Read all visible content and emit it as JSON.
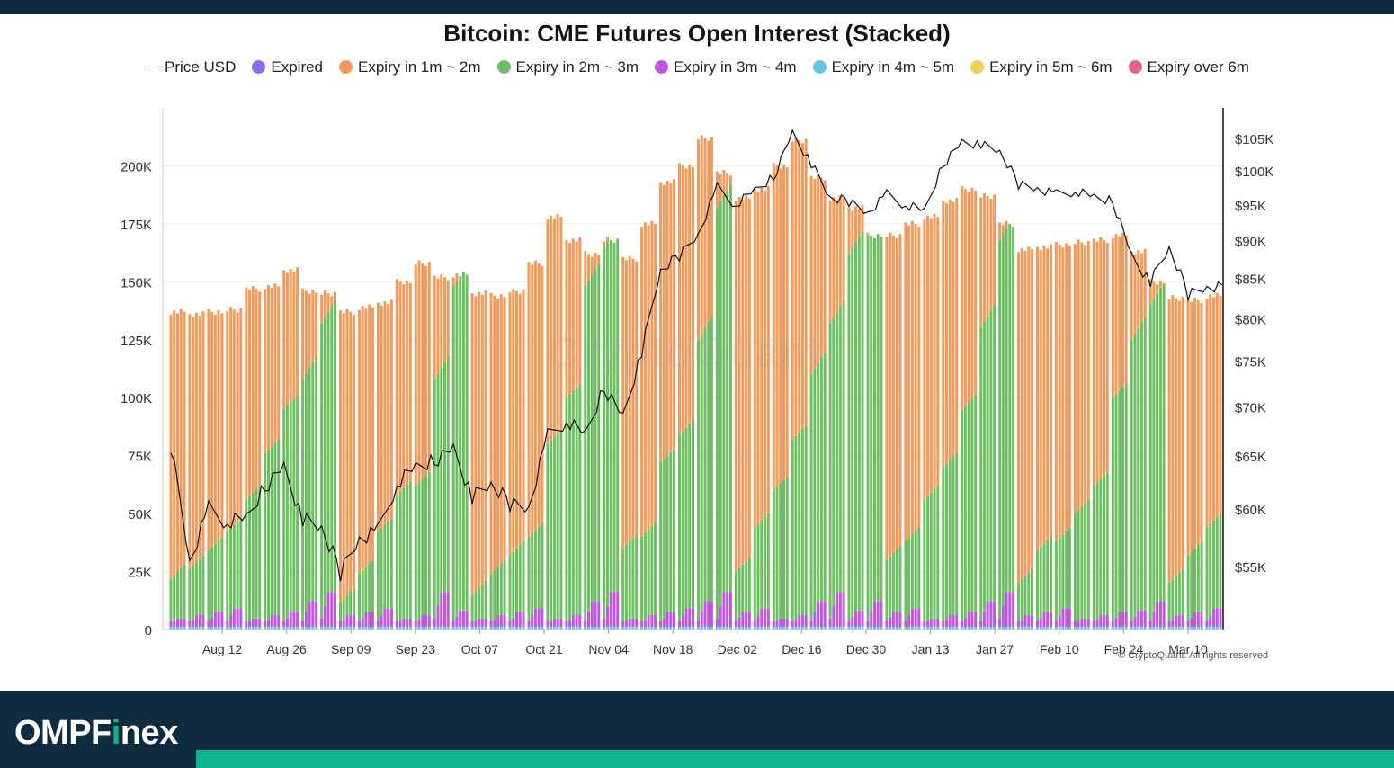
{
  "chart_data": {
    "type": "bar",
    "title": "Bitcoin: CME Futures Open Interest (Stacked)",
    "stacked": true,
    "y_left_ticks": [
      "0",
      "25K",
      "50K",
      "75K",
      "100K",
      "125K",
      "150K",
      "175K",
      "200K"
    ],
    "y_left_range": [
      0,
      225000
    ],
    "y_right_ticks": [
      "$55K",
      "$60K",
      "$65K",
      "$70K",
      "$75K",
      "$80K",
      "$85K",
      "$90K",
      "$95K",
      "$100K",
      "$105K"
    ],
    "y_right_range": [
      50000,
      110000
    ],
    "y_right_scale": "log",
    "x_tick_labels": [
      "Aug 12",
      "Aug 26",
      "Sep 09",
      "Sep 23",
      "Oct 07",
      "Oct 21",
      "Nov 04",
      "Nov 18",
      "Dec 02",
      "Dec 16",
      "Dec 30",
      "Jan 13",
      "Jan 27",
      "Feb 10",
      "Feb 24",
      "Mar 10"
    ],
    "series_names": [
      "Price USD",
      "Expired",
      "Expiry in 1m ~ 2m",
      "Expiry in 2m ~ 3m",
      "Expiry in 3m ~ 4m",
      "Expiry in 4m ~ 5m",
      "Expiry in 5m ~ 6m",
      "Expiry over 6m"
    ],
    "series_colors": [
      "#111111",
      "#8b6cf0",
      "#f39a5a",
      "#6cc062",
      "#c055e6",
      "#62c6e6",
      "#f2cf55",
      "#e8628f"
    ],
    "weeks": [
      {
        "total": 137000,
        "green": 22000,
        "price": 66000
      },
      {
        "total": 136000,
        "green": 26000,
        "price": 55500
      },
      {
        "total": 137000,
        "green": 34000,
        "price": 60000
      },
      {
        "total": 138000,
        "green": 42000,
        "price": 58800
      },
      {
        "total": 147000,
        "green": 56000,
        "price": 59000
      },
      {
        "total": 148000,
        "green": 76000,
        "price": 62000
      },
      {
        "total": 155000,
        "green": 95000,
        "price": 64000
      },
      {
        "total": 146000,
        "green": 108000,
        "price": 59000
      },
      {
        "total": 145000,
        "green": 132000,
        "price": 58300
      },
      {
        "total": 137000,
        "green": 12000,
        "price": 54500
      },
      {
        "total": 139000,
        "green": 24000,
        "price": 57500
      },
      {
        "total": 141000,
        "green": 42000,
        "price": 58000
      },
      {
        "total": 150000,
        "green": 58000,
        "price": 62300
      },
      {
        "total": 158000,
        "green": 62000,
        "price": 63800
      },
      {
        "total": 152000,
        "green": 108000,
        "price": 64500
      },
      {
        "total": 153000,
        "green": 148000,
        "price": 65800
      },
      {
        "total": 145000,
        "green": 15000,
        "price": 61000
      },
      {
        "total": 144000,
        "green": 24000,
        "price": 62300
      },
      {
        "total": 146000,
        "green": 32000,
        "price": 60500
      },
      {
        "total": 158000,
        "green": 40000,
        "price": 60200
      },
      {
        "total": 178000,
        "green": 80000,
        "price": 67000
      },
      {
        "total": 168000,
        "green": 100000,
        "price": 68500
      },
      {
        "total": 162000,
        "green": 148000,
        "price": 67000
      },
      {
        "total": 168000,
        "green": 165000,
        "price": 72000
      },
      {
        "total": 160000,
        "green": 35000,
        "price": 69000
      },
      {
        "total": 175000,
        "green": 40000,
        "price": 76000
      },
      {
        "total": 193000,
        "green": 72000,
        "price": 86000
      },
      {
        "total": 200000,
        "green": 84000,
        "price": 88000
      },
      {
        "total": 212000,
        "green": 125000,
        "price": 91000
      },
      {
        "total": 197000,
        "green": 182000,
        "price": 97500
      },
      {
        "total": 186000,
        "green": 25000,
        "price": 95000
      },
      {
        "total": 190000,
        "green": 44000,
        "price": 97000
      },
      {
        "total": 200000,
        "green": 60000,
        "price": 99000
      },
      {
        "total": 211000,
        "green": 82000,
        "price": 106000
      },
      {
        "total": 195000,
        "green": 110000,
        "price": 101000
      },
      {
        "total": 186000,
        "green": 132000,
        "price": 96000
      },
      {
        "total": 182000,
        "green": 162000,
        "price": 95500
      },
      {
        "total": 170000,
        "green": 170000,
        "price": 94000
      },
      {
        "total": 170000,
        "green": 30000,
        "price": 96500
      },
      {
        "total": 175000,
        "green": 38000,
        "price": 95000
      },
      {
        "total": 178000,
        "green": 56000,
        "price": 94000
      },
      {
        "total": 185000,
        "green": 70000,
        "price": 101000
      },
      {
        "total": 190000,
        "green": 95000,
        "price": 104500
      },
      {
        "total": 187000,
        "green": 130000,
        "price": 104000
      },
      {
        "total": 175000,
        "green": 168000,
        "price": 103000
      },
      {
        "total": 164000,
        "green": 20000,
        "price": 98000
      },
      {
        "total": 165000,
        "green": 34000,
        "price": 97500
      },
      {
        "total": 166000,
        "green": 38000,
        "price": 96500
      },
      {
        "total": 167000,
        "green": 50000,
        "price": 97000
      },
      {
        "total": 168000,
        "green": 62000,
        "price": 96000
      },
      {
        "total": 170000,
        "green": 100000,
        "price": 95500
      },
      {
        "total": 163000,
        "green": 125000,
        "price": 88000
      },
      {
        "total": 150000,
        "green": 140000,
        "price": 84500
      },
      {
        "total": 143000,
        "green": 20000,
        "price": 89000
      },
      {
        "total": 142000,
        "green": 32000,
        "price": 83000
      },
      {
        "total": 144000,
        "green": 44000,
        "price": 84000
      }
    ]
  },
  "watermark": "CryptoQuant",
  "copyright": "© CryptoQuant. All rights reserved",
  "brand": {
    "prefix": "OMPF",
    "dot_letter": "i",
    "suffix": "nex"
  }
}
